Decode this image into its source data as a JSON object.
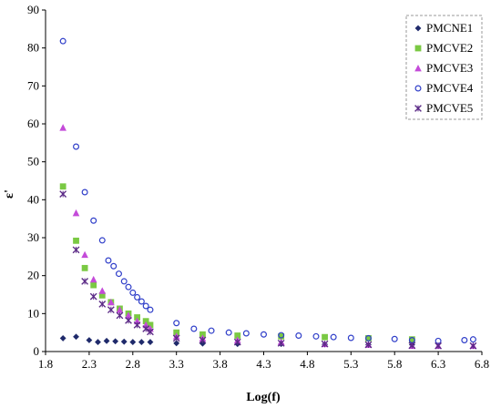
{
  "chart_data": {
    "type": "scatter",
    "title": "",
    "xlabel": "Log(f)",
    "ylabel": "ε'",
    "xlim": [
      1.8,
      6.8
    ],
    "ylim": [
      0,
      90
    ],
    "xticks": [
      "1.8",
      "2.3",
      "2.8",
      "3.3",
      "3.8",
      "4.3",
      "4.8",
      "5.3",
      "5.8",
      "6.3",
      "6.8"
    ],
    "yticks": [
      "0",
      "10",
      "20",
      "30",
      "40",
      "50",
      "60",
      "70",
      "80",
      "90"
    ],
    "grid": false,
    "legend_position": "top-right",
    "series": [
      {
        "name": "PMCNE1",
        "marker": "diamond",
        "color": "#1f2a6b",
        "x": [
          2.0,
          2.15,
          2.3,
          2.4,
          2.5,
          2.6,
          2.7,
          2.8,
          2.9,
          3.0,
          3.3,
          3.6,
          4.0,
          4.5,
          5.0,
          5.5,
          6.0
        ],
        "y": [
          3.5,
          3.9,
          3.0,
          2.5,
          2.8,
          2.7,
          2.6,
          2.5,
          2.5,
          2.5,
          2.2,
          2.1,
          2.0,
          2.0,
          1.9,
          1.8,
          1.8
        ]
      },
      {
        "name": "PMCVE2",
        "marker": "square",
        "color": "#7ac943",
        "x": [
          2.0,
          2.15,
          2.25,
          2.35,
          2.45,
          2.55,
          2.65,
          2.75,
          2.85,
          2.95,
          3.0,
          3.3,
          3.6,
          4.0,
          4.5,
          5.0,
          5.5,
          6.0
        ],
        "y": [
          43.5,
          29.2,
          22.0,
          17.5,
          14.8,
          13.0,
          11.3,
          10.0,
          9.0,
          8.0,
          7.0,
          5.0,
          4.5,
          4.2,
          4.0,
          3.8,
          3.5,
          3.2
        ]
      },
      {
        "name": "PMCVE3",
        "marker": "triangle",
        "color": "#c44bd9",
        "x": [
          2.0,
          2.15,
          2.25,
          2.35,
          2.45,
          2.55,
          2.65,
          2.75,
          2.85,
          2.95,
          3.0,
          3.3,
          3.6,
          4.0,
          4.5,
          5.0,
          5.5,
          6.0,
          6.3,
          6.7
        ],
        "y": [
          59.0,
          36.5,
          25.5,
          19.0,
          16.0,
          13.0,
          11.0,
          9.5,
          8.0,
          7.0,
          6.0,
          4.0,
          3.5,
          3.0,
          2.5,
          2.0,
          1.8,
          1.5,
          1.5,
          1.5
        ]
      },
      {
        "name": "PMCVE4",
        "marker": "circle",
        "color": "#2f3ec9",
        "x": [
          2.0,
          2.15,
          2.25,
          2.35,
          2.45,
          2.52,
          2.58,
          2.64,
          2.7,
          2.75,
          2.8,
          2.85,
          2.9,
          2.95,
          3.0,
          3.3,
          3.5,
          3.7,
          3.9,
          4.1,
          4.3,
          4.5,
          4.7,
          4.9,
          5.1,
          5.3,
          5.5,
          5.8,
          6.0,
          6.3,
          6.6,
          6.7
        ],
        "y": [
          81.8,
          54.0,
          42.0,
          34.5,
          29.3,
          24.0,
          22.5,
          20.5,
          18.5,
          17.0,
          15.5,
          14.3,
          13.2,
          12.0,
          11.0,
          7.5,
          6.0,
          5.5,
          5.0,
          4.8,
          4.5,
          4.3,
          4.2,
          4.0,
          3.8,
          3.6,
          3.5,
          3.3,
          3.0,
          2.8,
          3.0,
          3.2
        ]
      },
      {
        "name": "PMCVE5",
        "marker": "x",
        "color": "#5b2a86",
        "x": [
          2.0,
          2.15,
          2.25,
          2.35,
          2.45,
          2.55,
          2.65,
          2.75,
          2.85,
          2.95,
          3.0,
          3.3,
          3.6,
          4.0,
          4.5,
          5.0,
          5.5,
          6.0,
          6.3,
          6.7
        ],
        "y": [
          41.5,
          26.8,
          18.5,
          14.5,
          12.5,
          11.0,
          9.5,
          8.2,
          7.0,
          6.0,
          5.2,
          3.5,
          3.0,
          2.5,
          2.2,
          2.0,
          1.8,
          1.6,
          1.5,
          1.5
        ]
      }
    ]
  }
}
